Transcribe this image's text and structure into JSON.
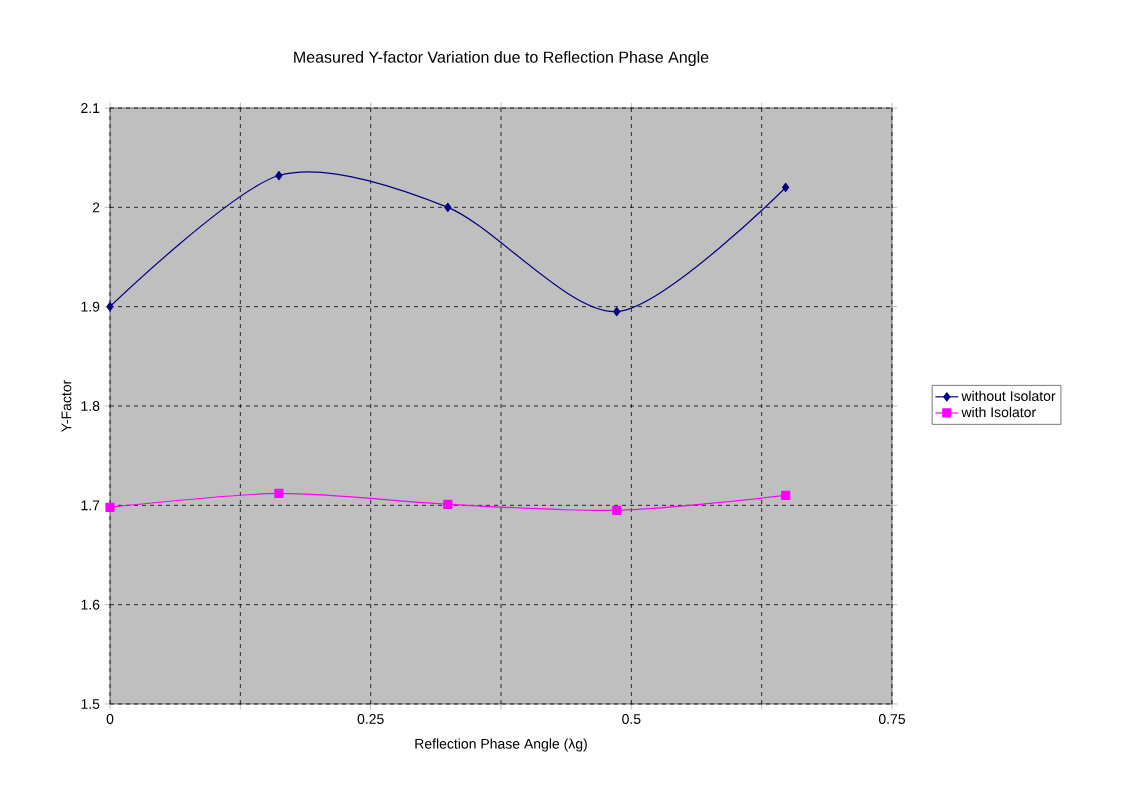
{
  "chart_data": {
    "type": "line",
    "title": "Measured Y-factor Variation due to Reflection Phase Angle",
    "xlabel": "Reflection Phase Angle (λg)",
    "ylabel": "Y-Factor",
    "x": [
      0,
      0.162,
      0.324,
      0.486,
      0.648
    ],
    "series": [
      {
        "name": "without Isolator",
        "color": "#000080",
        "marker": "diamond",
        "values": [
          1.9,
          2.032,
          2.0,
          1.895,
          2.02
        ]
      },
      {
        "name": "with Isolator",
        "color": "#ff00ff",
        "marker": "square",
        "values": [
          1.698,
          1.712,
          1.701,
          1.695,
          1.71
        ]
      }
    ],
    "xlim": [
      0,
      0.75
    ],
    "xticks": [
      0,
      {
        "value": 0.125,
        "label": null
      },
      0.25,
      {
        "value": 0.375,
        "label": null
      },
      0.5,
      {
        "value": 0.625,
        "label": null
      },
      0.75
    ],
    "ylim": [
      1.5,
      2.1
    ],
    "yticks": [
      1.5,
      1.6,
      1.7,
      1.8,
      1.9,
      2,
      2.1
    ],
    "grid": true,
    "legend": "right",
    "line_style": "solid"
  }
}
